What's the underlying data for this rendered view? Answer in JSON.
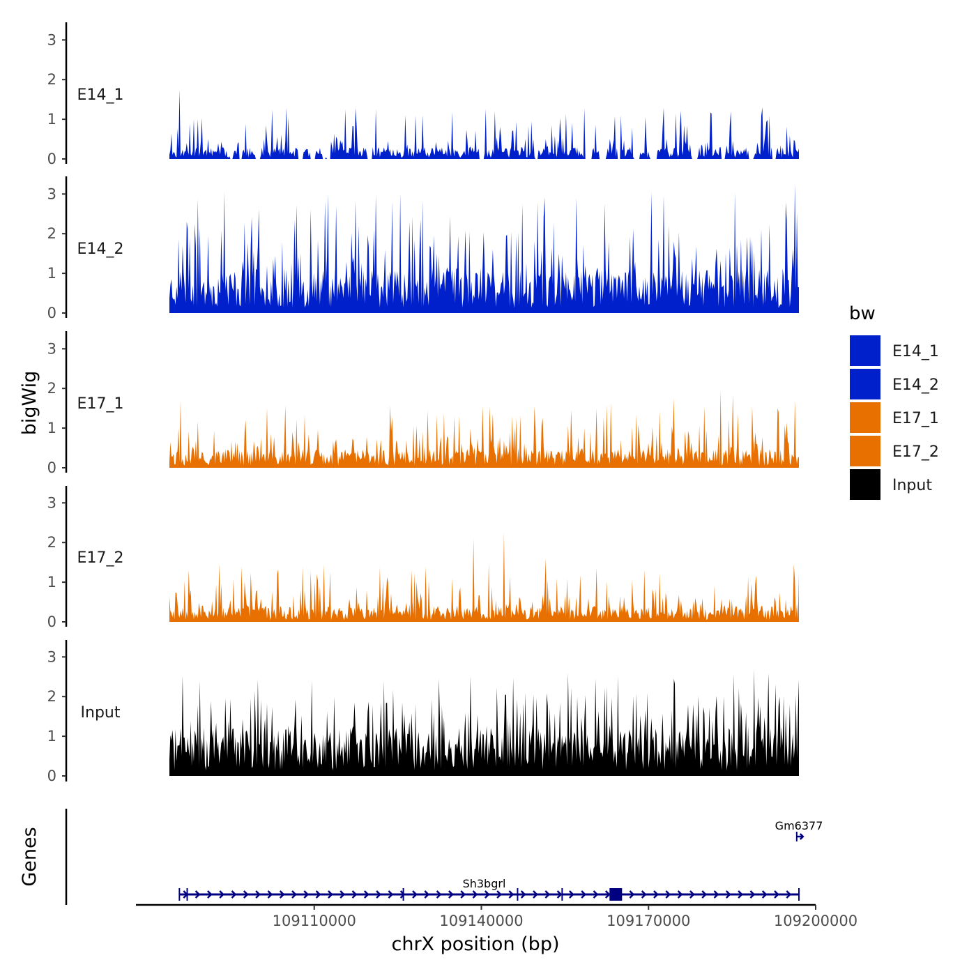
{
  "chart_data": {
    "type": "area",
    "title": "",
    "xlabel": "chrX position (bp)",
    "ylabel": "bigWig",
    "genes_label": "Genes",
    "xlim": [
      109078000,
      109200000
    ],
    "ylim": [
      0,
      3.3
    ],
    "data_range": [
      109084000,
      109197000
    ],
    "yticks": [
      0,
      1,
      2,
      3
    ],
    "x_ticks": [
      109110000,
      109140000,
      109170000,
      109200000
    ],
    "x_tick_labels": [
      "109110000",
      "109140000",
      "109170000",
      "109200000"
    ],
    "legend": {
      "title": "bw",
      "entries": [
        "E14_1",
        "E14_2",
        "E17_1",
        "E17_2",
        "Input"
      ],
      "position": "right"
    },
    "series": [
      {
        "name": "E14_1",
        "color": "#0020CC",
        "mean": 0.22,
        "spike_max": 1.3,
        "gap_prob": 0.14,
        "seed": 11,
        "peaks": [
          {
            "x": 109085800,
            "y": 1.75
          },
          {
            "x": 109088300,
            "y": 1.0
          },
          {
            "x": 109115500,
            "y": 1.25
          },
          {
            "x": 109129500,
            "y": 1.1
          },
          {
            "x": 109142500,
            "y": 1.2
          },
          {
            "x": 109184800,
            "y": 1.2
          },
          {
            "x": 109190500,
            "y": 1.3
          }
        ]
      },
      {
        "name": "E14_2",
        "color": "#0020CC",
        "mean": 0.85,
        "spike_max": 3.0,
        "gap_prob": 0.0,
        "seed": 23,
        "peaks": [
          {
            "x": 109093800,
            "y": 3.05
          },
          {
            "x": 109112500,
            "y": 3.0
          },
          {
            "x": 109125500,
            "y": 3.0
          },
          {
            "x": 109157000,
            "y": 2.9
          },
          {
            "x": 109170500,
            "y": 3.05
          },
          {
            "x": 109185500,
            "y": 3.05
          },
          {
            "x": 109196300,
            "y": 3.25
          }
        ]
      },
      {
        "name": "E17_1",
        "color": "#E87000",
        "mean": 0.35,
        "spike_max": 1.7,
        "gap_prob": 0.0,
        "seed": 37,
        "peaks": [
          {
            "x": 109086000,
            "y": 1.7
          },
          {
            "x": 109174500,
            "y": 1.75
          },
          {
            "x": 109183000,
            "y": 1.95
          },
          {
            "x": 109185200,
            "y": 1.85
          },
          {
            "x": 109196200,
            "y": 1.7
          }
        ]
      },
      {
        "name": "E17_2",
        "color": "#E87000",
        "mean": 0.3,
        "spike_max": 1.5,
        "gap_prob": 0.0,
        "seed": 53,
        "peaks": [
          {
            "x": 109087500,
            "y": 1.3
          },
          {
            "x": 109110500,
            "y": 1.2
          },
          {
            "x": 109127500,
            "y": 1.3
          },
          {
            "x": 109130000,
            "y": 1.4
          },
          {
            "x": 109138500,
            "y": 2.1
          },
          {
            "x": 109144000,
            "y": 2.25
          },
          {
            "x": 109151500,
            "y": 1.6
          },
          {
            "x": 109196000,
            "y": 1.45
          }
        ]
      },
      {
        "name": "Input",
        "color": "#000000",
        "mean": 0.9,
        "spike_max": 2.6,
        "gap_prob": 0.0,
        "seed": 71,
        "peaks": [
          {
            "x": 109109500,
            "y": 2.4
          },
          {
            "x": 109122500,
            "y": 2.4
          },
          {
            "x": 109138000,
            "y": 2.5
          },
          {
            "x": 109155500,
            "y": 2.6
          },
          {
            "x": 109174500,
            "y": 2.45
          },
          {
            "x": 109189000,
            "y": 2.7
          },
          {
            "x": 109191500,
            "y": 2.6
          }
        ]
      }
    ],
    "genes": [
      {
        "name": "Sh3bgrl",
        "start": 109085800,
        "end": 109197000,
        "strand": "+",
        "label_x": 109140500,
        "exon_ticks": [
          109085800,
          109087200,
          109126000,
          109146500,
          109154500,
          109197000
        ],
        "block": {
          "start": 109163000,
          "end": 109165000
        }
      },
      {
        "name": "Gm6377",
        "start": 109196600,
        "end": 109197700,
        "strand": "+",
        "label_x": 109197000
      }
    ]
  }
}
